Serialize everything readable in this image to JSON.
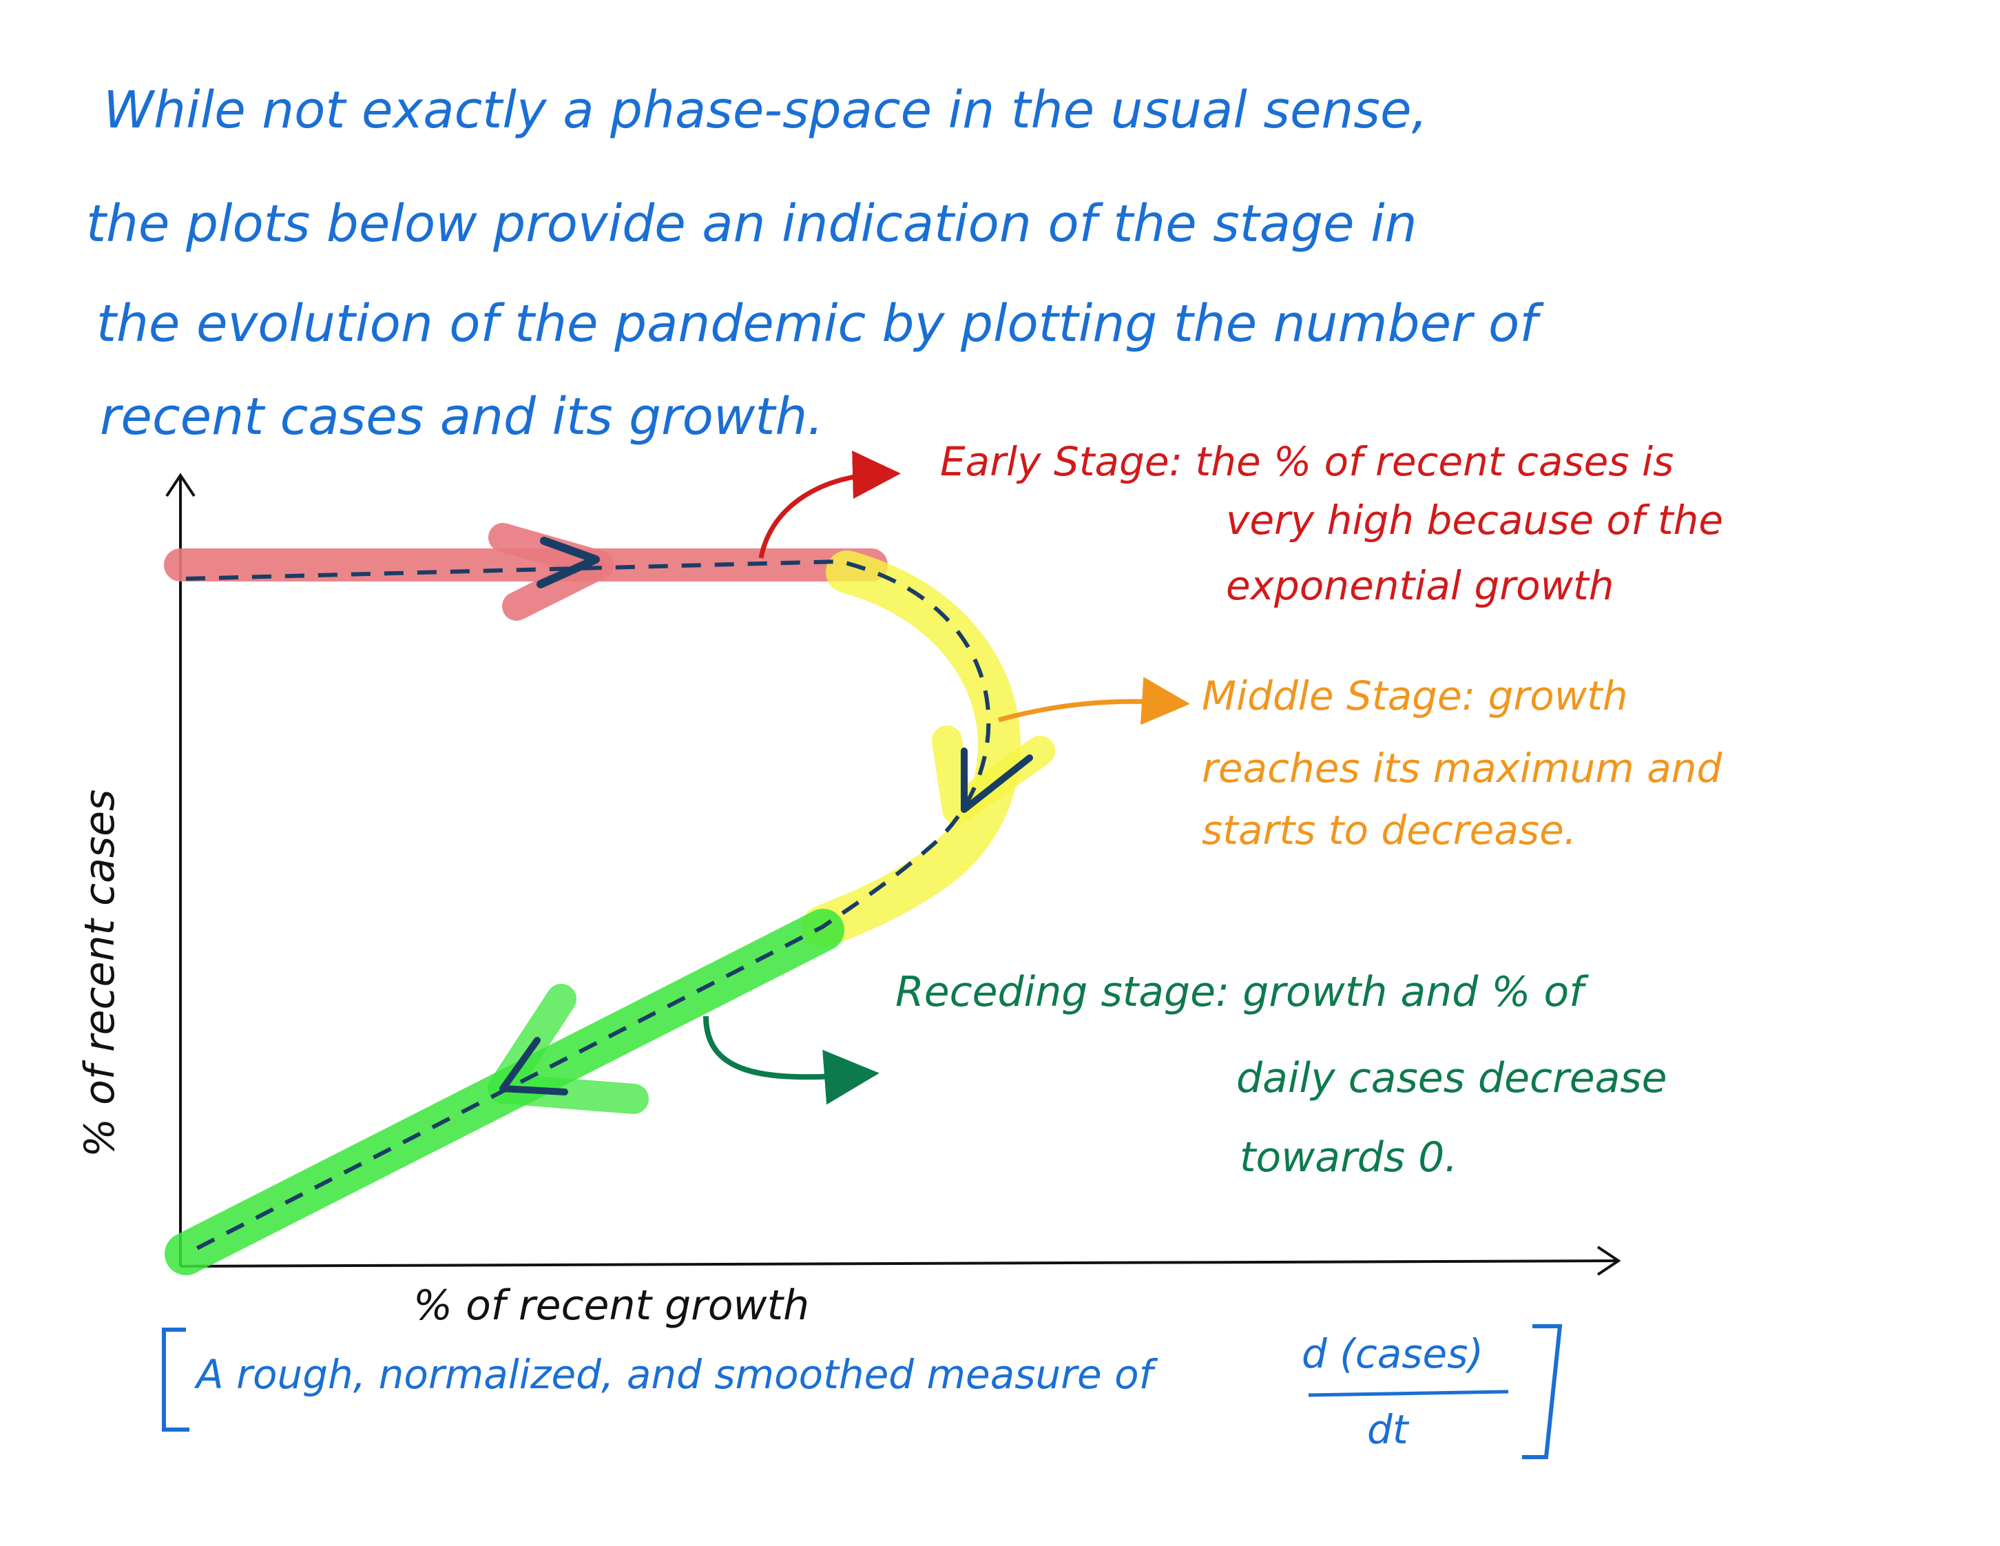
{
  "intro": {
    "lines": [
      "While not exactly a phase-space in the usual sense,",
      "the plots below provide an indication of the stage in",
      "the evolution of the pandemic by plotting the number of",
      "recent cases and its growth."
    ]
  },
  "axes": {
    "x_label": "% of recent growth",
    "y_label": "% of recent cases"
  },
  "stages": {
    "early": {
      "color": "#d11a1a",
      "lines": [
        "Early Stage: the % of recent cases is",
        "very high because of the",
        "exponential growth"
      ]
    },
    "middle": {
      "color": "#f0961e",
      "lines": [
        "Middle Stage: growth",
        "reaches its maximum and",
        "starts to decrease."
      ]
    },
    "receding": {
      "color": "#0d7a4e",
      "lines": [
        "Receding stage: growth and % of",
        "daily cases decrease",
        "towards 0."
      ]
    }
  },
  "footnote": {
    "text": "A rough, normalized, and smoothed measure of",
    "numerator": "d (cases)",
    "denominator": "dt"
  },
  "colors": {
    "early_band": "#e8797e",
    "middle_band": "#f5f542",
    "receding_band": "#3ce63c",
    "path_dash": "#1a3d66",
    "axis": "#111111",
    "intro_text": "#1a6fd4"
  }
}
